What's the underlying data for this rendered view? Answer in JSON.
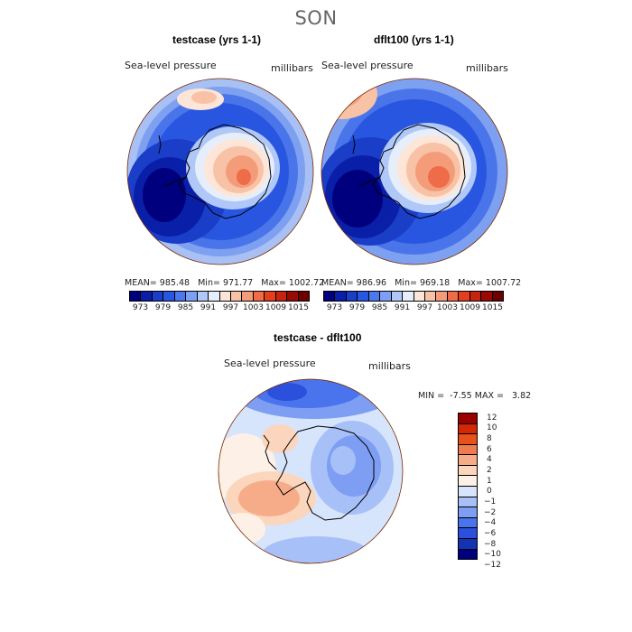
{
  "figure": {
    "season": "SON"
  },
  "panels": [
    {
      "title": "testcase (yrs 1-1)",
      "variable": "Sea-level pressure",
      "units": "millibars",
      "stats": {
        "mean_label": "MEAN=",
        "mean": "985.48",
        "min_label": "Min=",
        "min": "971.77",
        "max_label": "Max=",
        "max": "1002.72"
      }
    },
    {
      "title": "dflt100 (yrs 1-1)",
      "variable": "Sea-level pressure",
      "units": "millibars",
      "stats": {
        "mean_label": "MEAN=",
        "mean": "986.96",
        "min_label": "Min=",
        "min": "969.18",
        "max_label": "Max=",
        "max": "1007.72"
      }
    },
    {
      "title": "testcase - dflt100",
      "variable": "Sea-level pressure",
      "units": "millibars",
      "stats": {
        "min_label": "MIN =",
        "min": "-7.55",
        "max_label": "MAX =",
        "max": "3.82"
      }
    }
  ],
  "abs_colorbar": {
    "colors": [
      "#00007f",
      "#0a1fa8",
      "#1a3ec8",
      "#2856e2",
      "#4a78ee",
      "#7ea0f4",
      "#b0c8f8",
      "#e6eefc",
      "#fde6d8",
      "#f8c2a6",
      "#f49c7a",
      "#ee6c48",
      "#e43e1e",
      "#c42410",
      "#9a0a05",
      "#6e0000"
    ],
    "tick_labels": [
      "973",
      "979",
      "985",
      "991",
      "997",
      "1003",
      "1009",
      "1015"
    ]
  },
  "diff_colorbar": {
    "colors": [
      "#00007f",
      "#1432b4",
      "#2a50dc",
      "#4a74ee",
      "#7e9ef4",
      "#a8c0f8",
      "#d6e4fc",
      "#fdf0e6",
      "#fcd6bc",
      "#f6ac88",
      "#ef7c50",
      "#e8501c",
      "#d22808",
      "#9a0000"
    ],
    "tick_labels": [
      "12",
      "10",
      "8",
      "6",
      "4",
      "2",
      "1",
      "0",
      "−1",
      "−2",
      "−4",
      "−6",
      "−8",
      "−10",
      "−12"
    ]
  },
  "map_features": {
    "projection": "polar-stereographic-south",
    "coastline": "Antarctica"
  }
}
